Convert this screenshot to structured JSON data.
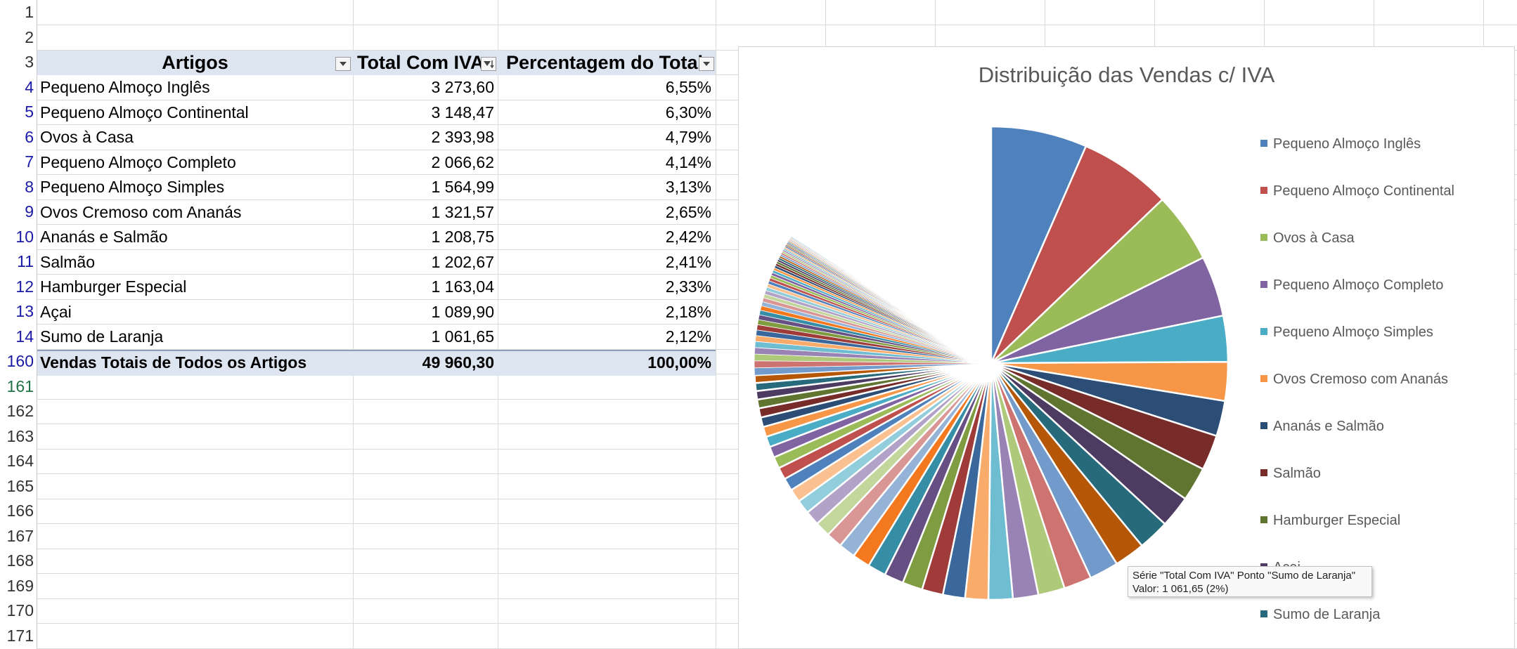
{
  "row_numbers": [
    "1",
    "2",
    "3",
    "4",
    "5",
    "6",
    "7",
    "8",
    "9",
    "10",
    "11",
    "12",
    "13",
    "14",
    "160",
    "161",
    "162",
    "163",
    "164",
    "165",
    "166",
    "167",
    "168",
    "169",
    "170",
    "171"
  ],
  "table": {
    "headers": [
      "Artigos",
      "Total Com IVA",
      "Percentagem do Total"
    ],
    "rows": [
      {
        "artigo": "Pequeno Almoço Inglês",
        "total": "3 273,60",
        "pct": "6,55%"
      },
      {
        "artigo": "Pequeno Almoço Continental",
        "total": "3 148,47",
        "pct": "6,30%"
      },
      {
        "artigo": "Ovos à Casa",
        "total": "2 393,98",
        "pct": "4,79%"
      },
      {
        "artigo": "Pequeno Almoço Completo",
        "total": "2 066,62",
        "pct": "4,14%"
      },
      {
        "artigo": "Pequeno Almoço Simples",
        "total": "1 564,99",
        "pct": "3,13%"
      },
      {
        "artigo": "Ovos Cremoso com Ananás",
        "total": "1 321,57",
        "pct": "2,65%"
      },
      {
        "artigo": "Ananás e Salmão",
        "total": "1 208,75",
        "pct": "2,42%"
      },
      {
        "artigo": "Salmão",
        "total": "1 202,67",
        "pct": "2,41%"
      },
      {
        "artigo": "Hamburger Especial",
        "total": "1 163,04",
        "pct": "2,33%"
      },
      {
        "artigo": "Açai",
        "total": "1 089,90",
        "pct": "2,18%"
      },
      {
        "artigo": "Sumo de Laranja",
        "total": "1 061,65",
        "pct": "2,12%"
      }
    ],
    "total_row": {
      "artigo": "Vendas Totais de Todos os Artigos",
      "total": "49 960,30",
      "pct": "100,00%"
    }
  },
  "chart_data": {
    "type": "pie",
    "title": "Distribuição das Vendas c/ IVA",
    "series_total": 49960.3,
    "categories": [
      "Pequeno Almoço Inglês",
      "Pequeno Almoço Continental",
      "Ovos à Casa",
      "Pequeno Almoço Completo",
      "Pequeno Almoço Simples",
      "Ovos Cremoso com Ananás",
      "Ananás e Salmão",
      "Salmão",
      "Hamburger Especial",
      "Açai",
      "Sumo de Laranja"
    ],
    "values": [
      3273.6,
      3148.47,
      2393.98,
      2066.62,
      1564.99,
      1321.57,
      1208.75,
      1202.67,
      1163.04,
      1089.9,
      1061.65
    ],
    "legend_position": "right",
    "palette": [
      "#4f81bd",
      "#c0504d",
      "#9bbb59",
      "#8064a2",
      "#4bacc6",
      "#f79646",
      "#2c4d75",
      "#772c2a",
      "#5f7530",
      "#4d3b62",
      "#276a7c",
      "#b65708",
      "#729aca",
      "#cd7371",
      "#afc97a",
      "#9983b5",
      "#6fbdd1",
      "#f9ab6b",
      "#3a679c",
      "#9f3b38",
      "#7f9c40",
      "#664f83",
      "#358ea6",
      "#f3781e",
      "#95b3d7",
      "#d99694",
      "#c3d69b",
      "#b3a2c7",
      "#92cddc",
      "#fac090"
    ]
  },
  "legend": [
    "Pequeno Almoço Inglês",
    "Pequeno Almoço Continental",
    "Ovos à Casa",
    "Pequeno Almoço Completo",
    "Pequeno Almoço Simples",
    "Ovos Cremoso com Ananás",
    "Ananás e Salmão",
    "Salmão",
    "Hamburger Especial",
    "Açai",
    "Sumo de Laranja"
  ],
  "tooltip": {
    "line1": "Série \"Total Com IVA\" Ponto \"Sumo de Laranja\"",
    "line2": "Valor: 1 061,65 (2%)"
  },
  "icons": {
    "filter": "filter-dropdown-icon",
    "sorted_filter": "sort-filter-icon"
  }
}
